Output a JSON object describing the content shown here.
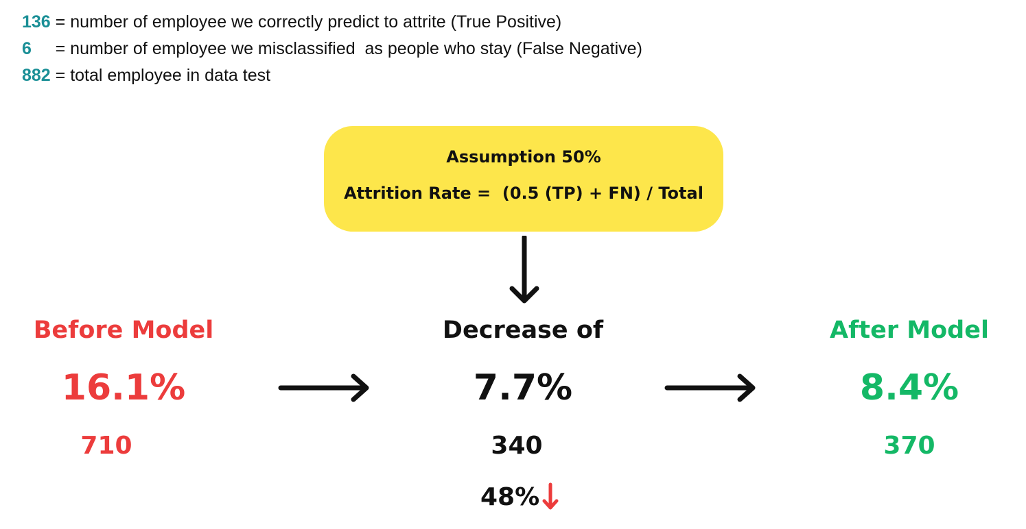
{
  "legend": [
    {
      "value": "136",
      "description": " = number of employee we correctly predict to attrite (True Positive)"
    },
    {
      "value": "6",
      "description": "     = number of employee we misclassified  as people who stay (False Negative)"
    },
    {
      "value": "882",
      "description": " = total employee in data test"
    }
  ],
  "assumption": {
    "title": "Assumption 50%",
    "formula": "Attrition Rate =  (0.5 (TP) + FN) / Total",
    "color": "#fde64b"
  },
  "before": {
    "heading": "Before Model",
    "rate": "16.1%",
    "count": "710",
    "color": "#ec3c3c"
  },
  "decrease": {
    "heading": "Decrease of",
    "rate": "7.7%",
    "count": "340",
    "reduction": "48%",
    "reduction_icon": "down-arrow-icon",
    "reduction_icon_color": "#ec3c3c"
  },
  "after": {
    "heading": "After Model",
    "rate": "8.4%",
    "count": "370",
    "color": "#14b866"
  },
  "icons": {
    "flow_down": "down-arrow-icon",
    "flow_right": "right-arrow-icon"
  }
}
